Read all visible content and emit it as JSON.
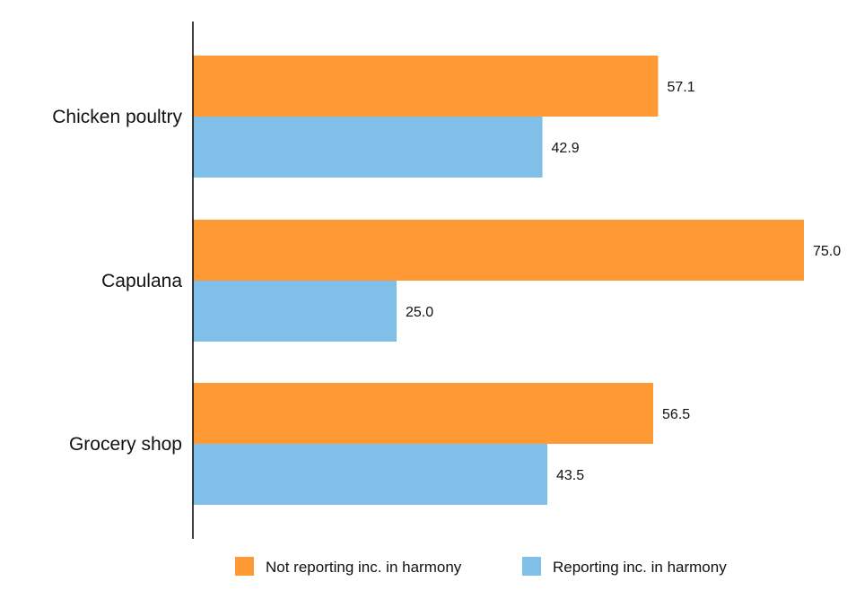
{
  "chart_data": {
    "type": "bar",
    "orientation": "horizontal",
    "categories": [
      "Chicken poultry",
      "Capulana",
      "Grocery shop"
    ],
    "series": [
      {
        "name": "Not reporting inc. in harmony",
        "values": [
          57.1,
          75.0,
          56.5
        ],
        "color": "#FF9933"
      },
      {
        "name": "Reporting inc. in harmony",
        "values": [
          42.9,
          25.0,
          43.5
        ],
        "color": "#7FBFE8"
      }
    ],
    "xlim": [
      0,
      75
    ],
    "value_format": "one-decimal",
    "grid": false,
    "legend_position": "bottom",
    "title": "",
    "xlabel": "",
    "ylabel": ""
  }
}
